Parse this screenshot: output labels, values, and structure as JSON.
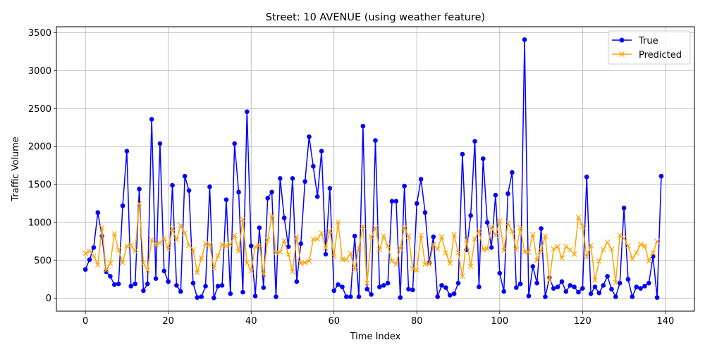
{
  "chart_data": {
    "type": "line",
    "title": "Street: 10 AVENUE (using weather feature)",
    "xlabel": "Time Index",
    "ylabel": "Traffic Volume",
    "xlim": [
      -7,
      147
    ],
    "ylim": [
      -170,
      3580
    ],
    "xticks": [
      0,
      20,
      40,
      60,
      80,
      100,
      120,
      140
    ],
    "yticks": [
      0,
      500,
      1000,
      1500,
      2000,
      2500,
      3000,
      3500
    ],
    "grid": true,
    "legend_position": "top-right",
    "series": [
      {
        "name": "True",
        "color": "#0000ff",
        "marker": "o",
        "values": [
          380,
          510,
          670,
          1130,
          820,
          350,
          290,
          180,
          190,
          1220,
          1940,
          160,
          190,
          1440,
          100,
          190,
          2360,
          260,
          2040,
          360,
          220,
          1490,
          170,
          90,
          1610,
          1420,
          200,
          10,
          20,
          160,
          1470,
          5,
          160,
          170,
          1300,
          60,
          2040,
          1400,
          80,
          2460,
          690,
          30,
          930,
          140,
          1320,
          1400,
          20,
          1580,
          1060,
          680,
          1580,
          220,
          720,
          1540,
          2130,
          1740,
          1340,
          1940,
          580,
          1450,
          100,
          180,
          150,
          20,
          20,
          820,
          20,
          2270,
          120,
          50,
          2080,
          150,
          170,
          200,
          1280,
          1280,
          10,
          1480,
          120,
          110,
          1250,
          1570,
          1130,
          470,
          810,
          20,
          170,
          140,
          40,
          60,
          200,
          1900,
          640,
          1090,
          2070,
          150,
          1840,
          1000,
          670,
          1360,
          330,
          90,
          1380,
          1660,
          140,
          190,
          3410,
          30,
          420,
          200,
          920,
          20,
          270,
          130,
          150,
          220,
          90,
          170,
          150,
          80,
          130,
          1600,
          60,
          150,
          70,
          170,
          290,
          120,
          20,
          200,
          1190,
          250,
          20,
          150,
          130,
          160,
          200,
          550,
          10,
          1610
        ]
      },
      {
        "name": "Predicted",
        "color": "#ffa500",
        "marker": "x",
        "values": [
          590,
          620,
          560,
          440,
          930,
          370,
          460,
          850,
          640,
          470,
          690,
          700,
          620,
          1250,
          460,
          370,
          770,
          710,
          730,
          790,
          650,
          920,
          770,
          960,
          860,
          700,
          640,
          340,
          530,
          720,
          710,
          400,
          560,
          710,
          690,
          710,
          830,
          620,
          1040,
          470,
          360,
          680,
          700,
          320,
          770,
          1090,
          600,
          610,
          760,
          580,
          350,
          810,
          460,
          470,
          490,
          780,
          780,
          860,
          660,
          890,
          550,
          1000,
          510,
          510,
          590,
          380,
          660,
          950,
          200,
          810,
          930,
          640,
          820,
          690,
          490,
          450,
          660,
          930,
          820,
          390,
          370,
          830,
          450,
          450,
          710,
          650,
          810,
          600,
          460,
          840,
          600,
          290,
          770,
          420,
          780,
          890,
          640,
          650,
          940,
          830,
          1020,
          630,
          990,
          880,
          640,
          930,
          610,
          610,
          840,
          500,
          630,
          820,
          240,
          650,
          680,
          530,
          680,
          640,
          580,
          1070,
          950,
          550,
          700,
          240,
          490,
          640,
          740,
          650,
          210,
          830,
          790,
          690,
          520,
          600,
          710,
          690,
          490,
          600,
          750
        ]
      }
    ]
  }
}
